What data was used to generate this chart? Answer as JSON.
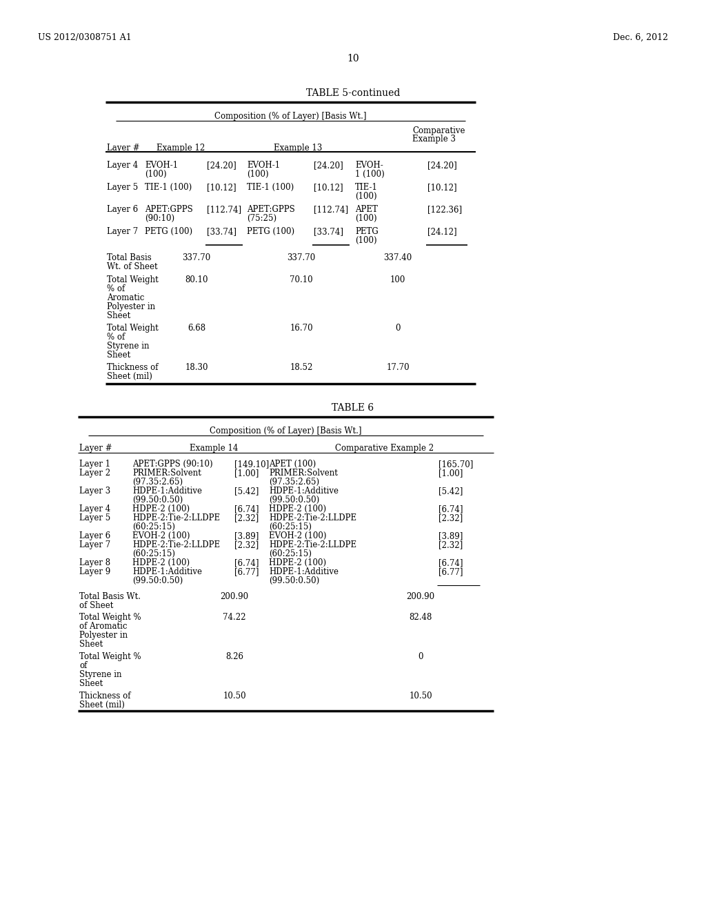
{
  "bg_color": "#ffffff",
  "header_left": "US 2012/0308751 A1",
  "header_right": "Dec. 6, 2012",
  "page_number": "10"
}
